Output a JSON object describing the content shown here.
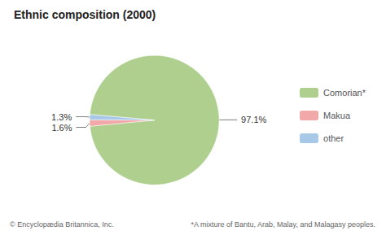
{
  "chart_data": {
    "type": "pie",
    "title": "Ethnic composition (2000)",
    "categories": [
      "Comorian*",
      "Makua",
      "other"
    ],
    "values": [
      97.1,
      1.6,
      1.3
    ],
    "value_labels": [
      "97.1%",
      "1.6%",
      "1.3%"
    ],
    "colors": [
      "#aecf8e",
      "#f2a8a8",
      "#a8c8e8"
    ],
    "data_labels": true,
    "legend": "right",
    "annotations": [
      "© Encyclopædia Britannica, Inc.",
      "*A mixture of Bantu, Arab, Malay, and Malagasy peoples."
    ]
  }
}
